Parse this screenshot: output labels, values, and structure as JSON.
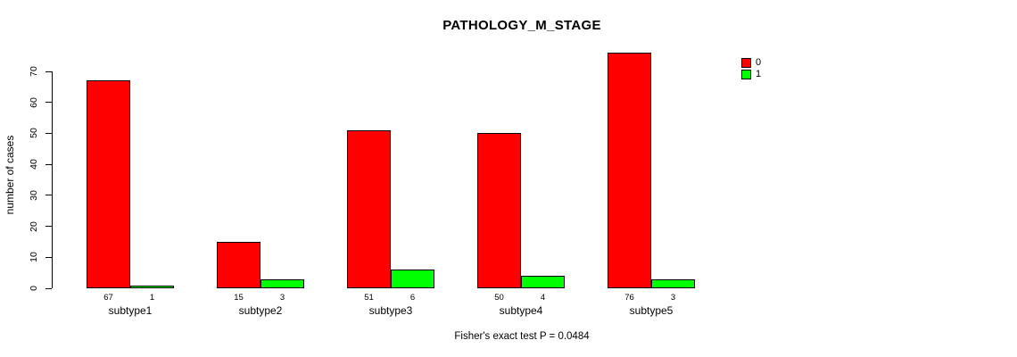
{
  "chart_data": {
    "type": "bar",
    "title": "PATHOLOGY_M_STAGE",
    "xlabel": "",
    "ylabel": "number of cases",
    "categories": [
      "subtype1",
      "subtype2",
      "subtype3",
      "subtype4",
      "subtype5"
    ],
    "series": [
      {
        "name": "0",
        "color": "#ff0000",
        "values": [
          67,
          15,
          51,
          50,
          76
        ]
      },
      {
        "name": "1",
        "color": "#00ff00",
        "values": [
          1,
          3,
          6,
          4,
          3
        ]
      }
    ],
    "ylim": [
      0,
      70
    ],
    "yticks": [
      0,
      10,
      20,
      30,
      40,
      50,
      60,
      70
    ],
    "grid": false,
    "legend_position": "top-right",
    "bar_value_labels": true,
    "annotation": "Fisher's exact test P = 0.0484"
  }
}
